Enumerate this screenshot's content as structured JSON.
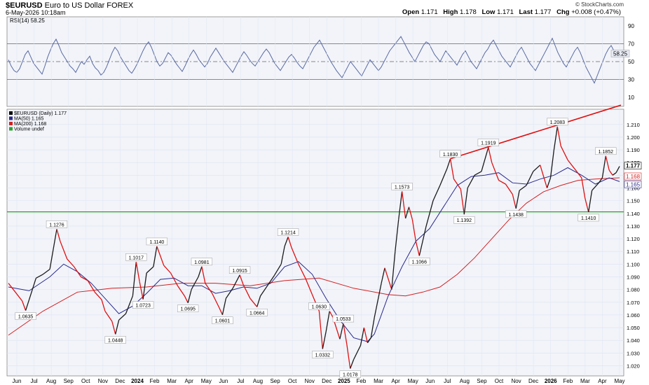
{
  "header": {
    "symbol": "$EURUSD",
    "name": "Euro to US Dollar",
    "exchange": "FOREX",
    "date": "6-May-2026 10:18am",
    "brand": "© StockCharts.com",
    "open_label": "Open",
    "open": "1.171",
    "high_label": "High",
    "high": "1.178",
    "low_label": "Low",
    "low": "1.171",
    "last_label": "Last",
    "last": "1.177",
    "chg_label": "Chg",
    "chg": "+0.008 (+0.47%)"
  },
  "colors": {
    "price_up": "#1a1a1a",
    "price_down": "#e01010",
    "ma50": "#2a2a8a",
    "ma200": "#d42020",
    "support": "#2ea02e",
    "trendline": "#e01010",
    "rsi": "#5a6aa0",
    "panel_bg": "#f2f4fa"
  },
  "chart_data": [
    {
      "type": "line",
      "title": "RSI(14) 58.25",
      "series": [
        {
          "name": "RSI(14)",
          "last": 58.25
        }
      ],
      "y_ticks": [
        10,
        30,
        50,
        70,
        90
      ],
      "ylim": [
        0,
        100
      ],
      "reference_lines": [
        30,
        50,
        70
      ],
      "last_label": "58.25",
      "rsi_values": [
        52,
        45,
        40,
        38,
        42,
        50,
        58,
        62,
        55,
        48,
        44,
        40,
        36,
        45,
        55,
        63,
        70,
        75,
        68,
        60,
        55,
        50,
        45,
        42,
        38,
        44,
        50,
        47,
        52,
        56,
        48,
        43,
        40,
        35,
        38,
        44,
        52,
        60,
        66,
        62,
        55,
        50,
        45,
        40,
        37,
        42,
        48,
        55,
        62,
        68,
        72,
        66,
        58,
        50,
        45,
        48,
        54,
        60,
        57,
        52,
        47,
        43,
        39,
        45,
        52,
        58,
        63,
        58,
        52,
        48,
        44,
        48,
        55,
        60,
        65,
        60,
        55,
        50,
        46,
        42,
        38,
        44,
        50,
        56,
        61,
        57,
        52,
        48,
        45,
        50,
        55,
        60,
        64,
        60,
        54,
        48,
        44,
        40,
        45,
        50,
        55,
        58,
        54,
        49,
        45,
        42,
        48,
        54,
        60,
        66,
        70,
        74,
        68,
        62,
        56,
        50,
        45,
        40,
        36,
        32,
        38,
        44,
        50,
        46,
        42,
        38,
        34,
        40,
        46,
        52,
        48,
        44,
        40,
        44,
        50,
        56,
        62,
        66,
        70,
        74,
        78,
        72,
        66,
        60,
        55,
        50,
        56,
        62,
        68,
        72,
        70,
        64,
        58,
        54,
        50,
        56,
        62,
        58,
        54,
        50,
        46,
        52,
        58,
        62,
        56,
        50,
        46,
        42,
        48,
        54,
        60,
        64,
        70,
        74,
        68,
        62,
        56,
        52,
        48,
        44,
        50,
        56,
        62,
        66,
        60,
        54,
        48,
        44,
        40,
        46,
        52,
        58,
        64,
        70,
        76,
        68,
        60,
        54,
        48,
        44,
        50,
        56,
        62,
        66,
        60,
        52,
        44,
        38,
        32,
        26,
        34,
        42,
        50,
        58,
        64,
        68,
        62,
        56,
        58
      ]
    },
    {
      "type": "line",
      "title": "$EURUSD (Daily) 1.177",
      "series": [
        {
          "name": "$EURUSD (Daily)",
          "last": 1.177
        },
        {
          "name": "MA(50)",
          "last": 1.165
        },
        {
          "name": "MA(200)",
          "last": 1.168
        }
      ],
      "legend_extra": "Volume undef",
      "legend_labels": [
        "$EURUSD (Daily) 1.177",
        "MA(50) 1.165",
        "MA(200) 1.168",
        "Volume undef"
      ],
      "x_labels": [
        "Jun",
        "Jul",
        "Aug",
        "Sep",
        "Oct",
        "Nov",
        "Dec",
        "2024",
        "Feb",
        "Mar",
        "Apr",
        "May",
        "Jun",
        "Jul",
        "Aug",
        "Sep",
        "Oct",
        "Nov",
        "Dec",
        "2025",
        "Feb",
        "Mar",
        "Apr",
        "May",
        "Jun",
        "Jul",
        "Aug",
        "Sep",
        "Oct",
        "Nov",
        "Dec",
        "2026",
        "Feb",
        "Mar",
        "Apr",
        "May"
      ],
      "y_ticks": [
        "1.020",
        "1.030",
        "1.040",
        "1.050",
        "1.060",
        "1.070",
        "1.080",
        "1.090",
        "1.100",
        "1.110",
        "1.120",
        "1.130",
        "1.140",
        "1.150",
        "1.160",
        "1.170",
        "1.180",
        "1.190",
        "1.200",
        "1.210"
      ],
      "ylim": [
        1.012,
        1.222
      ],
      "price": [
        [
          0,
          1.085
        ],
        [
          2,
          1.078
        ],
        [
          4,
          1.071
        ],
        [
          5,
          1.0635
        ],
        [
          6,
          1.072
        ],
        [
          8,
          1.089
        ],
        [
          10,
          1.092
        ],
        [
          12,
          1.096
        ],
        [
          14,
          1.1276
        ],
        [
          15,
          1.118
        ],
        [
          17,
          1.104
        ],
        [
          19,
          1.098
        ],
        [
          21,
          1.09
        ],
        [
          23,
          1.087
        ],
        [
          25,
          1.078
        ],
        [
          27,
          1.072
        ],
        [
          28,
          1.063
        ],
        [
          30,
          1.055
        ],
        [
          31,
          1.0448
        ],
        [
          32,
          1.056
        ],
        [
          34,
          1.061
        ],
        [
          36,
          1.075
        ],
        [
          37,
          1.1017
        ],
        [
          38,
          1.086
        ],
        [
          39,
          1.0723
        ],
        [
          40,
          1.093
        ],
        [
          42,
          1.098
        ],
        [
          43,
          1.114
        ],
        [
          45,
          1.099
        ],
        [
          47,
          1.093
        ],
        [
          49,
          1.083
        ],
        [
          51,
          1.075
        ],
        [
          52,
          1.0695
        ],
        [
          53,
          1.08
        ],
        [
          55,
          1.09
        ],
        [
          56,
          1.0981
        ],
        [
          57,
          1.085
        ],
        [
          59,
          1.077
        ],
        [
          61,
          1.066
        ],
        [
          62,
          1.0601
        ],
        [
          63,
          1.073
        ],
        [
          65,
          1.081
        ],
        [
          67,
          1.0915
        ],
        [
          68,
          1.084
        ],
        [
          70,
          1.073
        ],
        [
          72,
          1.0664
        ],
        [
          73,
          1.075
        ],
        [
          75,
          1.083
        ],
        [
          77,
          1.091
        ],
        [
          79,
          1.1
        ],
        [
          80,
          1.114
        ],
        [
          81,
          1.1214
        ],
        [
          82,
          1.113
        ],
        [
          84,
          1.1
        ],
        [
          86,
          1.089
        ],
        [
          88,
          1.076
        ],
        [
          90,
          1.063
        ],
        [
          91,
          1.0332
        ],
        [
          92,
          1.047
        ],
        [
          93,
          1.063
        ],
        [
          94,
          1.058
        ],
        [
          96,
          1.041
        ],
        [
          97,
          1.0533
        ],
        [
          98,
          1.037
        ],
        [
          99,
          1.0178
        ],
        [
          100,
          1.025
        ],
        [
          102,
          1.036
        ],
        [
          103,
          1.05
        ],
        [
          104,
          1.038
        ],
        [
          105,
          1.042
        ],
        [
          106,
          1.058
        ],
        [
          108,
          1.085
        ],
        [
          109,
          1.097
        ],
        [
          111,
          1.08
        ],
        [
          112,
          1.11
        ],
        [
          113,
          1.135
        ],
        [
          114,
          1.1573
        ],
        [
          115,
          1.136
        ],
        [
          116,
          1.145
        ],
        [
          117,
          1.135
        ],
        [
          118,
          1.118
        ],
        [
          119,
          1.1066
        ],
        [
          121,
          1.13
        ],
        [
          123,
          1.15
        ],
        [
          125,
          1.162
        ],
        [
          127,
          1.175
        ],
        [
          128,
          1.183
        ],
        [
          129,
          1.167
        ],
        [
          131,
          1.159
        ],
        [
          132,
          1.1392
        ],
        [
          133,
          1.16
        ],
        [
          135,
          1.17
        ],
        [
          137,
          1.173
        ],
        [
          139,
          1.1919
        ],
        [
          140,
          1.18
        ],
        [
          142,
          1.166
        ],
        [
          144,
          1.163
        ],
        [
          146,
          1.155
        ],
        [
          147,
          1.1438
        ],
        [
          148,
          1.158
        ],
        [
          150,
          1.162
        ],
        [
          152,
          1.173
        ],
        [
          154,
          1.178
        ],
        [
          156,
          1.16
        ],
        [
          157,
          1.168
        ],
        [
          158,
          1.19
        ],
        [
          159,
          1.2083
        ],
        [
          160,
          1.193
        ],
        [
          162,
          1.182
        ],
        [
          164,
          1.175
        ],
        [
          166,
          1.168
        ],
        [
          167,
          1.152
        ],
        [
          168,
          1.141
        ],
        [
          169,
          1.158
        ],
        [
          171,
          1.164
        ],
        [
          172,
          1.168
        ],
        [
          173,
          1.1852
        ],
        [
          174,
          1.174
        ],
        [
          175,
          1.17
        ],
        [
          176,
          1.172
        ],
        [
          177,
          1.177
        ]
      ],
      "ma50": [
        [
          0,
          1.082
        ],
        [
          6,
          1.079
        ],
        [
          12,
          1.09
        ],
        [
          16,
          1.1
        ],
        [
          20,
          1.094
        ],
        [
          24,
          1.085
        ],
        [
          28,
          1.073
        ],
        [
          32,
          1.061
        ],
        [
          36,
          1.067
        ],
        [
          40,
          1.077
        ],
        [
          44,
          1.088
        ],
        [
          48,
          1.089
        ],
        [
          52,
          1.083
        ],
        [
          56,
          1.083
        ],
        [
          60,
          1.077
        ],
        [
          64,
          1.079
        ],
        [
          68,
          1.082
        ],
        [
          72,
          1.081
        ],
        [
          76,
          1.085
        ],
        [
          80,
          1.098
        ],
        [
          84,
          1.102
        ],
        [
          88,
          1.092
        ],
        [
          92,
          1.073
        ],
        [
          96,
          1.056
        ],
        [
          100,
          1.042
        ],
        [
          104,
          1.039
        ],
        [
          106,
          1.045
        ],
        [
          110,
          1.075
        ],
        [
          114,
          1.098
        ],
        [
          118,
          1.118
        ],
        [
          122,
          1.128
        ],
        [
          126,
          1.145
        ],
        [
          130,
          1.162
        ],
        [
          134,
          1.169
        ],
        [
          138,
          1.17
        ],
        [
          142,
          1.172
        ],
        [
          146,
          1.164
        ],
        [
          150,
          1.163
        ],
        [
          154,
          1.167
        ],
        [
          158,
          1.17
        ],
        [
          162,
          1.176
        ],
        [
          166,
          1.17
        ],
        [
          170,
          1.163
        ],
        [
          174,
          1.168
        ],
        [
          177,
          1.165
        ]
      ],
      "ma200": [
        [
          0,
          1.044
        ],
        [
          10,
          1.063
        ],
        [
          20,
          1.078
        ],
        [
          30,
          1.081
        ],
        [
          40,
          1.082
        ],
        [
          50,
          1.085
        ],
        [
          60,
          1.085
        ],
        [
          70,
          1.083
        ],
        [
          80,
          1.087
        ],
        [
          90,
          1.089
        ],
        [
          100,
          1.081
        ],
        [
          110,
          1.076
        ],
        [
          115,
          1.075
        ],
        [
          120,
          1.078
        ],
        [
          125,
          1.082
        ],
        [
          130,
          1.092
        ],
        [
          135,
          1.105
        ],
        [
          140,
          1.12
        ],
        [
          145,
          1.135
        ],
        [
          150,
          1.148
        ],
        [
          155,
          1.157
        ],
        [
          160,
          1.162
        ],
        [
          165,
          1.166
        ],
        [
          170,
          1.167
        ],
        [
          177,
          1.168
        ]
      ],
      "support_line": 1.1412,
      "trendline": [
        [
          128,
          1.183
        ],
        [
          177,
          1.2252
        ]
      ],
      "point_labels": [
        {
          "x": 5,
          "y": 1.0635,
          "text": "1.0635",
          "pos": "below"
        },
        {
          "x": 14,
          "y": 1.1276,
          "text": "1.1276",
          "pos": "above"
        },
        {
          "x": 31,
          "y": 1.0448,
          "text": "1.0448",
          "pos": "below"
        },
        {
          "x": 37,
          "y": 1.1017,
          "text": "1.1017",
          "pos": "above"
        },
        {
          "x": 39,
          "y": 1.0723,
          "text": "1.0723",
          "pos": "below"
        },
        {
          "x": 43,
          "y": 1.114,
          "text": "1.1140",
          "pos": "above"
        },
        {
          "x": 52,
          "y": 1.0695,
          "text": "1.0695",
          "pos": "below"
        },
        {
          "x": 56,
          "y": 1.0981,
          "text": "1.0981",
          "pos": "above"
        },
        {
          "x": 62,
          "y": 1.0601,
          "text": "1.0601",
          "pos": "below"
        },
        {
          "x": 67,
          "y": 1.0915,
          "text": "1.0915",
          "pos": "above"
        },
        {
          "x": 72,
          "y": 1.0664,
          "text": "1.0664",
          "pos": "below"
        },
        {
          "x": 81,
          "y": 1.1214,
          "text": "1.1214",
          "pos": "above"
        },
        {
          "x": 90,
          "y": 1.063,
          "text": "1.0630",
          "pos": "above"
        },
        {
          "x": 91,
          "y": 1.0332,
          "text": "1.0332",
          "pos": "below"
        },
        {
          "x": 97,
          "y": 1.0533,
          "text": "1.0533",
          "pos": "above"
        },
        {
          "x": 99,
          "y": 1.0178,
          "text": "1.0178",
          "pos": "below"
        },
        {
          "x": 114,
          "y": 1.1573,
          "text": "1.1573",
          "pos": "above"
        },
        {
          "x": 119,
          "y": 1.1066,
          "text": "1.1066",
          "pos": "below"
        },
        {
          "x": 128,
          "y": 1.183,
          "text": "1.1830",
          "pos": "above"
        },
        {
          "x": 132,
          "y": 1.1392,
          "text": "1.1392",
          "pos": "below"
        },
        {
          "x": 139,
          "y": 1.1919,
          "text": "1.1919",
          "pos": "above"
        },
        {
          "x": 147,
          "y": 1.1438,
          "text": "1.1438",
          "pos": "below"
        },
        {
          "x": 159,
          "y": 1.2083,
          "text": "1.2083",
          "pos": "above"
        },
        {
          "x": 168,
          "y": 1.141,
          "text": "1.1410",
          "pos": "below"
        },
        {
          "x": 173,
          "y": 1.1852,
          "text": "1.1852",
          "pos": "above"
        }
      ],
      "right_value_labels": [
        {
          "y": 1.177,
          "text": "1.177",
          "kind": "last"
        },
        {
          "y": 1.168,
          "text": "1.168",
          "kind": "ma200"
        },
        {
          "y": 1.165,
          "text": "1.165",
          "kind": "ma50"
        }
      ]
    }
  ]
}
